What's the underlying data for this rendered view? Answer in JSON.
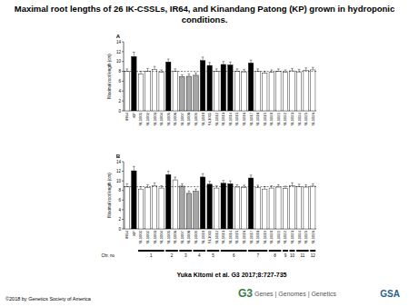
{
  "page": {
    "title": "Maximal root lengths of 26 IK-CSSLs, IR64, and Kinandang Patong (KP) grown in hydroponic conditions.",
    "citation": "Yuka Kitomi et al. G3 2017;8:727-735",
    "copyright": "©2018 by Genetics Society of America",
    "journal_mark": "G3",
    "journal_name": "Genes | Genomes | Genetics",
    "society": "GSA"
  },
  "chart_data": [
    {
      "type": "bar",
      "panel": "A",
      "y_label": "Maximal root length (cm)",
      "categories": [
        "IR64",
        "KP",
        "SL1001",
        "SL1002",
        "SL1003",
        "SL1004",
        "SL1005",
        "SL1006",
        "SL1007",
        "SL1008",
        "SL1009",
        "SL1010",
        "SL1011",
        "SL1012",
        "SL1013",
        "SL1014",
        "SL1015",
        "SL1016",
        "SL1017",
        "SL1018",
        "SL1019",
        "SL1020",
        "SL1021",
        "SL1022",
        "SL1023",
        "SL1024",
        "SL1025",
        "SL1026"
      ],
      "values": [
        8.0,
        11.0,
        7.5,
        8.0,
        8.4,
        7.8,
        9.9,
        8.0,
        6.9,
        7.0,
        7.2,
        10.2,
        9.2,
        8.0,
        9.4,
        9.3,
        8.0,
        7.9,
        9.7,
        8.0,
        7.6,
        7.8,
        8.0,
        7.8,
        8.1,
        7.9,
        8.2,
        8.3
      ],
      "errors": [
        0.5,
        0.9,
        0.5,
        0.6,
        0.6,
        0.5,
        0.6,
        0.5,
        0.4,
        0.5,
        0.5,
        0.7,
        0.6,
        0.5,
        0.6,
        0.6,
        0.5,
        0.5,
        0.6,
        0.5,
        0.4,
        0.5,
        0.5,
        0.5,
        0.5,
        0.5,
        0.5,
        0.5
      ],
      "colors": [
        "#ffffff",
        "#000000",
        "#ffffff",
        "#ffffff",
        "#ffffff",
        "#ffffff",
        "#000000",
        "#ffffff",
        "#a6a6a6",
        "#a6a6a6",
        "#a6a6a6",
        "#000000",
        "#000000",
        "#ffffff",
        "#000000",
        "#000000",
        "#ffffff",
        "#ffffff",
        "#000000",
        "#ffffff",
        "#ffffff",
        "#ffffff",
        "#ffffff",
        "#ffffff",
        "#ffffff",
        "#ffffff",
        "#ffffff",
        "#ffffff"
      ],
      "reference_line": 8.0,
      "ylim": [
        0,
        14
      ],
      "yticks": [
        0,
        2,
        4,
        6,
        8,
        10,
        12,
        14
      ]
    },
    {
      "type": "bar",
      "panel": "B",
      "y_label": "Maximal root length (cm)",
      "categories": [
        "IR64",
        "KP",
        "SL1001",
        "SL1002",
        "SL1003",
        "SL1004",
        "SL1005",
        "SL1006",
        "SL1007",
        "SL1008",
        "SL1009",
        "SL1010",
        "SL1011",
        "SL1012",
        "SL1013",
        "SL1014",
        "SL1015",
        "SL1016",
        "SL1017",
        "SL1018",
        "SL1019",
        "SL1020",
        "SL1021",
        "SL1022",
        "SL1023",
        "SL1024",
        "SL1025",
        "SL1026"
      ],
      "values": [
        8.8,
        12.1,
        8.3,
        8.6,
        9.0,
        8.5,
        11.3,
        10.2,
        8.9,
        7.4,
        7.8,
        10.8,
        9.3,
        8.5,
        9.5,
        9.4,
        8.7,
        8.6,
        10.6,
        8.6,
        8.3,
        8.5,
        8.7,
        8.4,
        9.0,
        8.8,
        8.7,
        8.9
      ],
      "errors": [
        0.6,
        0.9,
        0.5,
        0.6,
        0.6,
        0.5,
        0.7,
        0.6,
        0.5,
        0.5,
        0.5,
        0.7,
        0.6,
        0.5,
        0.6,
        0.6,
        0.5,
        0.5,
        0.6,
        0.5,
        0.5,
        0.5,
        0.5,
        0.5,
        0.6,
        0.5,
        0.5,
        0.5
      ],
      "colors": [
        "#ffffff",
        "#000000",
        "#ffffff",
        "#ffffff",
        "#ffffff",
        "#ffffff",
        "#000000",
        "#ffffff",
        "#a6a6a6",
        "#a6a6a6",
        "#a6a6a6",
        "#000000",
        "#000000",
        "#ffffff",
        "#000000",
        "#000000",
        "#ffffff",
        "#ffffff",
        "#000000",
        "#ffffff",
        "#ffffff",
        "#ffffff",
        "#ffffff",
        "#ffffff",
        "#ffffff",
        "#ffffff",
        "#ffffff",
        "#ffffff"
      ],
      "reference_line": 8.8,
      "ylim": [
        0,
        14
      ],
      "yticks": [
        0,
        2,
        4,
        6,
        8,
        10,
        12,
        14
      ],
      "chromosome_label": "Chr. no",
      "chromosome": [
        null,
        null,
        "1",
        "1",
        "1",
        "1",
        "2",
        "2",
        "3",
        "3",
        "4",
        "4",
        "5",
        "5",
        "6",
        "6",
        "6",
        "6",
        "7",
        "7",
        "7",
        "8",
        "8",
        "9",
        "10",
        "11",
        "11",
        "12"
      ]
    }
  ]
}
